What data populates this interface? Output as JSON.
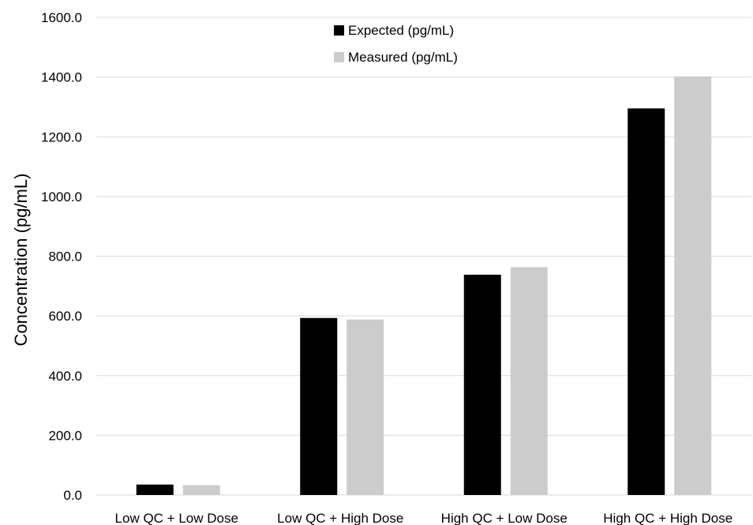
{
  "chart_data": {
    "type": "bar",
    "title": "",
    "xlabel": "",
    "ylabel": "Concentration (pg/mL)",
    "ylim": [
      0,
      1600
    ],
    "yticks": [
      "0.0",
      "200.0",
      "400.0",
      "600.0",
      "800.0",
      "1000.0",
      "1200.0",
      "1400.0",
      "1600.0"
    ],
    "grid": true,
    "legend_position": "top-center",
    "categories": [
      "Low QC + Low Dose",
      "Low QC + High Dose",
      "High QC + Low Dose",
      "High QC + High Dose"
    ],
    "series": [
      {
        "name": "Expected (pg/mL)",
        "color": "#000000",
        "values": [
          35,
          593,
          738,
          1295
        ]
      },
      {
        "name": "Measured (pg/mL)",
        "color": "#cccccc",
        "values": [
          33,
          588,
          763,
          1402
        ]
      }
    ]
  }
}
